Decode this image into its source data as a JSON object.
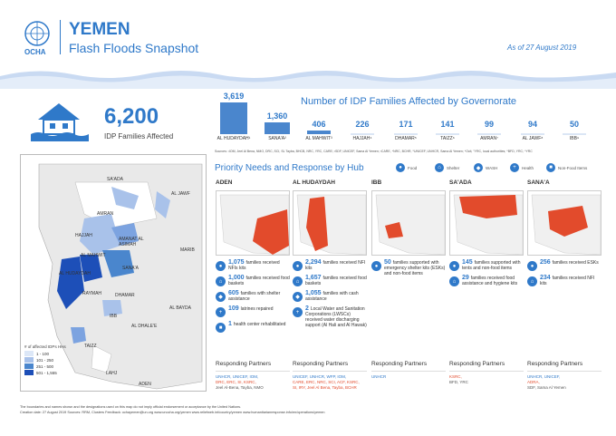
{
  "header": {
    "title": "YEMEN",
    "subtitle": "Flash Floods Snapshot",
    "ocha": "OCHA",
    "as_of": "As of  27 August 2019"
  },
  "kpi": {
    "value": "6,200",
    "label": "IDP Families Affected"
  },
  "chart": {
    "title": "Number of IDP Families Affected by Governorate"
  },
  "chart_data": {
    "type": "bar",
    "title": "Number of IDP Families Affected by Governorate",
    "categories": [
      "AL HUDAYDAH¹",
      "SANA'A²",
      "AL MAHWIT³",
      "HAJJAH⁴",
      "DHAMAR⁵",
      "TAIZZ⁶",
      "AMRAN⁷",
      "AL JAWF⁸",
      "IBB⁹"
    ],
    "value_labels": [
      "3,619",
      "1,360",
      "406",
      "226",
      "171",
      "141",
      "99",
      "94",
      "50"
    ],
    "values": [
      3619,
      1360,
      406,
      226,
      171,
      141,
      99,
      94,
      50
    ],
    "ylim": [
      0,
      3619
    ]
  },
  "source": "Sources: ¹IOM, Jeel Al Bena, NMO, DRC, SCI, SL Tayba, BHCB, NRC, YRC, CARE; ²SDF, UNICEF, Sama Al Yemen; ³CARE, ⁴NRC, BCHR, ⁵UNICEF, UNHCR, Sama Al Yemen; ⁶Ocit, ⁷YRC, local authorities; ⁸BFD, YRC; ⁹YRC",
  "needs": {
    "title": "Priority Needs and Response by Hub",
    "legend": [
      "Food",
      "Shelter",
      "WASH",
      "Health",
      "Non-Food Items"
    ]
  },
  "hubs": [
    {
      "name": "ADEN",
      "items": [
        {
          "v": "1,075",
          "t": "families received NFIs kits"
        },
        {
          "v": "1,000",
          "t": "families received food baskets"
        },
        {
          "v": "605",
          "t": "families with shelter assistance"
        },
        {
          "v": "109",
          "t": "latrines repaired"
        },
        {
          "v": "1",
          "t": "health center rehabilitated"
        }
      ],
      "partners": [
        {
          "t": "UNHCR, UNICEF, IOM,",
          "c": "b"
        },
        {
          "t": "DRC, ERC, SI, KSRC,",
          "c": "r"
        },
        {
          "t": "Jeel Al-Bena, Tayba, NMO",
          "c": "g"
        }
      ]
    },
    {
      "name": "AL HUDAYDAH",
      "items": [
        {
          "v": "2,294",
          "t": "families received NFI kits"
        },
        {
          "v": "1,657",
          "t": "families received food baskets"
        },
        {
          "v": "1,055",
          "t": "families with cash assistance"
        },
        {
          "v": "2",
          "t": "Local Water and Sanitation Corporations (LWSCs) received water discharging support (Al Hali and Al Hawak)"
        }
      ],
      "partners": [
        {
          "t": "UNICEF, UNHCR, WFP, IOM,",
          "c": "b"
        },
        {
          "t": "CARE, ERC, NRC, SCI, ACF, KSRC,",
          "c": "r"
        },
        {
          "t": "SI, IRY, Jeel Al Bena, Tayba, BCHR",
          "c": "r"
        }
      ]
    },
    {
      "name": "IBB",
      "items": [
        {
          "v": "50",
          "t": "families supported with emergency shelter kits (ESKs) and non-food items"
        }
      ],
      "partners": [
        {
          "t": "UNHCR",
          "c": "b"
        }
      ]
    },
    {
      "name": "SA'ADA",
      "items": [
        {
          "v": "145",
          "t": "families supported with tents and non-food items"
        },
        {
          "v": "29",
          "t": "families received food assistance and hygiene kits"
        }
      ],
      "partners": [
        {
          "t": "KSRC,",
          "c": "r"
        },
        {
          "t": "BFD, YRC",
          "c": "g"
        }
      ]
    },
    {
      "name": "SANA'A",
      "items": [
        {
          "v": "256",
          "t": "families received ESKs"
        },
        {
          "v": "234",
          "t": "families received NFI kits"
        }
      ],
      "partners": [
        {
          "t": "UNHCR, UNICEF,",
          "c": "b"
        },
        {
          "t": "ADRA,",
          "c": "r"
        },
        {
          "t": "SDF, Sama Al Yemen",
          "c": "g"
        }
      ]
    }
  ],
  "partners_label": "Responding Partners",
  "map": {
    "labels": [
      "SA'ADA",
      "AL JAWF",
      "AMRAN",
      "HAJJAH",
      "AMANAT AL ASIMAH",
      "AL MAHWIT",
      "MARIB",
      "SANA'A",
      "AL HUDAYDAH",
      "RAYMAH",
      "DHAMAR",
      "AL BAYDA",
      "IBB",
      "AL DHALE'E",
      "TAIZZ",
      "LAHJ",
      "ADEN"
    ],
    "legend_title": "# of affected IDPs HHs",
    "legend": [
      "1 - 100",
      "101 - 250",
      "251 - 500",
      "501 - 1,555"
    ]
  },
  "footer": {
    "l1": "The boundaries and names shown and the designations used on this map do not imply official endorsement or acceptance by the United Nations.",
    "l2": "Creation date: 27 August 2019   Sources: RRM, Clusters   Feedback: ochayemen@un.org   www.unocha.org/yemen   www.reliefweb.int/country/yemen   www.humanitarianresponse.info/en/operations/yemen"
  }
}
